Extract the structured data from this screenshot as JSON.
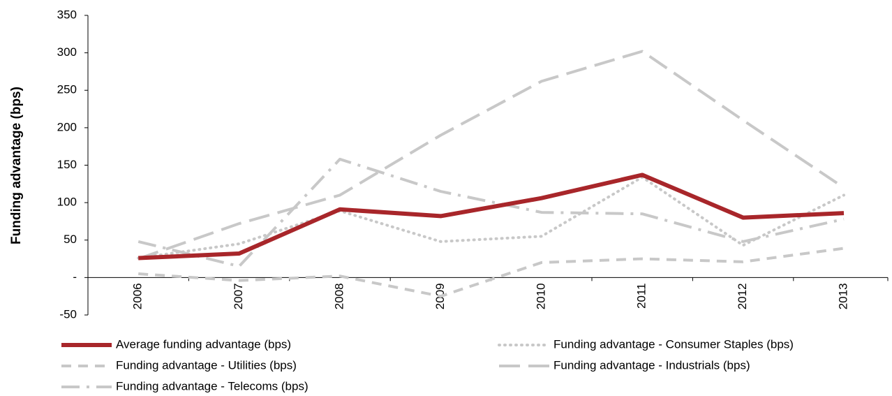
{
  "chart_data": {
    "type": "line",
    "y_label": "Funding advantage (bps)",
    "categories": [
      "2006",
      "2007",
      "2008",
      "2009",
      "2010",
      "2011",
      "2012",
      "2013"
    ],
    "series": [
      {
        "name": "Average funding advantage (bps)",
        "color": "#a8262a",
        "line_style": "solid",
        "values": [
          26,
          32,
          91,
          82,
          106,
          137,
          80,
          86
        ]
      },
      {
        "name": "Funding advantage - Consumer Staples (bps)",
        "color": "#c8c8c8",
        "line_style": "dotted",
        "values": [
          26,
          45,
          89,
          48,
          55,
          134,
          43,
          110
        ]
      },
      {
        "name": "Funding advantage - Utilities (bps)",
        "color": "#c8c8c8",
        "line_style": "dashed",
        "values": [
          5,
          -4,
          2,
          -25,
          20,
          25,
          21,
          39
        ]
      },
      {
        "name": "Funding advantage - Industrials (bps)",
        "color": "#c8c8c8",
        "line_style": "long-dashed",
        "values": [
          25,
          72,
          110,
          190,
          262,
          302,
          210,
          120
        ]
      },
      {
        "name": "Funding advantage - Telecoms (bps)",
        "color": "#c8c8c8",
        "line_style": "dash-dot",
        "values": [
          48,
          15,
          158,
          115,
          87,
          85,
          48,
          78
        ]
      }
    ],
    "ylim": [
      -50,
      350
    ],
    "yticks": [
      -50,
      {
        "value": 0,
        "label": "-"
      },
      50,
      100,
      150,
      200,
      250,
      300,
      350
    ],
    "legend": "bottom"
  }
}
